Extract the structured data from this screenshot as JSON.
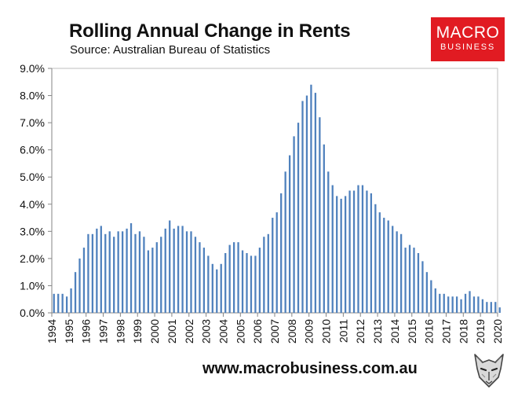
{
  "header": {
    "title": "Rolling Annual Change in Rents",
    "subtitle": "Source: Australian Bureau of Statistics"
  },
  "logo": {
    "line1": "MACRO",
    "line2": "BUSINESS",
    "color": "#e11b22"
  },
  "footer": {
    "url": "www.macrobusiness.com.au",
    "mascot_icon": "wolf-mascot-icon"
  },
  "chart_data": {
    "type": "bar",
    "title": "Rolling Annual Change in Rents",
    "subtitle": "Source: Australian Bureau of Statistics",
    "xlabel": "",
    "ylabel": "",
    "ylim": [
      0,
      9
    ],
    "y_ticks": [
      "0.0%",
      "1.0%",
      "2.0%",
      "3.0%",
      "4.0%",
      "5.0%",
      "6.0%",
      "7.0%",
      "8.0%",
      "9.0%"
    ],
    "x_ticks": [
      "1994",
      "1995",
      "1996",
      "1997",
      "1998",
      "1999",
      "2000",
      "2001",
      "2002",
      "2003",
      "2004",
      "2005",
      "2006",
      "2007",
      "2008",
      "2009",
      "2010",
      "2011",
      "2012",
      "2013",
      "2014",
      "2015",
      "2016",
      "2017",
      "2018",
      "2019",
      "2020"
    ],
    "x_range": [
      "1994-Q1",
      "2020-Q1"
    ],
    "frequency": "quarterly",
    "bar_color": "#4f81bd",
    "plot_background": "#ffffff",
    "grid": false,
    "legend": "none",
    "series": [
      {
        "values": [
          0.7,
          0.7,
          0.7,
          0.6,
          0.9,
          1.5,
          2.0,
          2.4,
          2.9,
          2.9,
          3.1,
          3.2,
          2.9,
          3.0,
          2.8,
          3.0,
          3.0,
          3.1,
          3.3,
          2.9,
          3.0,
          2.8,
          2.3,
          2.4,
          2.6,
          2.8,
          3.1,
          3.4,
          3.1,
          3.2,
          3.2,
          3.0,
          3.0,
          2.8,
          2.6,
          2.4,
          2.1,
          1.8,
          1.6,
          1.8,
          2.2,
          2.5,
          2.6,
          2.6,
          2.3,
          2.2,
          2.1,
          2.1,
          2.4,
          2.8,
          2.9,
          3.5,
          3.7,
          4.4,
          5.2,
          5.8,
          6.5,
          7.0,
          7.8,
          8.0,
          8.4,
          8.1,
          7.2,
          6.2,
          5.2,
          4.7,
          4.3,
          4.2,
          4.3,
          4.5,
          4.5,
          4.7,
          4.7,
          4.5,
          4.4,
          4.0,
          3.7,
          3.5,
          3.4,
          3.2,
          3.0,
          2.9,
          2.4,
          2.5,
          2.4,
          2.2,
          1.9,
          1.5,
          1.2,
          0.9,
          0.7,
          0.7,
          0.6,
          0.6,
          0.6,
          0.5,
          0.7,
          0.8,
          0.6,
          0.6,
          0.5,
          0.4,
          0.4,
          0.4,
          0.2
        ]
      }
    ]
  }
}
